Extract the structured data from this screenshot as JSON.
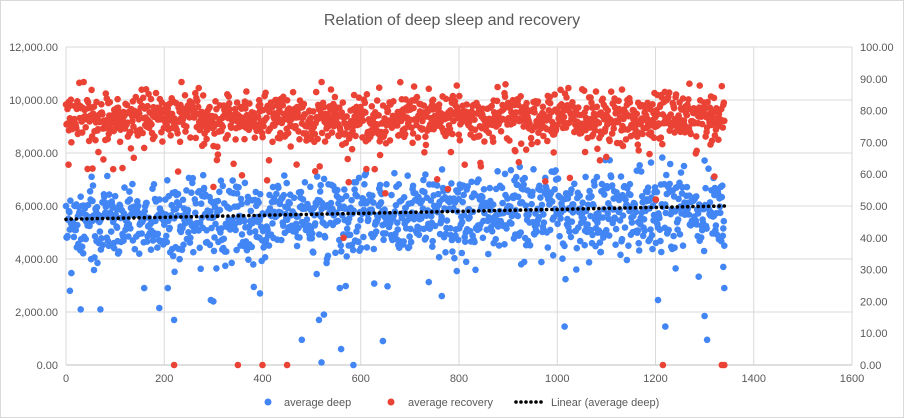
{
  "chart_data": {
    "type": "scatter",
    "title": "Relation of deep sleep and recovery",
    "xlabel": "",
    "ylabel": "",
    "xlim": [
      0,
      1600
    ],
    "ylim": [
      0,
      12000
    ],
    "y2lim": [
      0,
      100
    ],
    "x_ticks": [
      "0",
      "200",
      "400",
      "600",
      "800",
      "1000",
      "1200",
      "1400",
      "1600"
    ],
    "y_ticks": [
      "0.00",
      "2,000.00",
      "4,000.00",
      "6,000.00",
      "8,000.00",
      "10,000.00",
      "12,000.00"
    ],
    "y2_ticks": [
      "0.00",
      "10.00",
      "20.00",
      "30.00",
      "40.00",
      "50.00",
      "60.00",
      "70.00",
      "80.00",
      "90.00",
      "100.00"
    ],
    "grid": true,
    "legend_position": "bottom",
    "series": [
      {
        "name": "average deep",
        "axis": "left",
        "color": "#4285F4",
        "n_points": 1340,
        "x_range": [
          0,
          1340
        ],
        "band_center_start": 5400,
        "band_center_end": 6000,
        "band_spread": 1800,
        "outliers": [
          {
            "x": 8,
            "y": 2800
          },
          {
            "x": 30,
            "y": 2100
          },
          {
            "x": 70,
            "y": 2100
          },
          {
            "x": 190,
            "y": 2150
          },
          {
            "x": 220,
            "y": 1700
          },
          {
            "x": 295,
            "y": 2450
          },
          {
            "x": 300,
            "y": 2400
          },
          {
            "x": 395,
            "y": 2700
          },
          {
            "x": 480,
            "y": 950
          },
          {
            "x": 515,
            "y": 1700
          },
          {
            "x": 525,
            "y": 1900
          },
          {
            "x": 520,
            "y": 100
          },
          {
            "x": 560,
            "y": 600
          },
          {
            "x": 585,
            "y": 0
          },
          {
            "x": 645,
            "y": 900
          },
          {
            "x": 765,
            "y": 2600
          },
          {
            "x": 1015,
            "y": 1450
          },
          {
            "x": 1205,
            "y": 2450
          },
          {
            "x": 1220,
            "y": 1450
          },
          {
            "x": 1300,
            "y": 1850
          },
          {
            "x": 1305,
            "y": 950
          },
          {
            "x": 1340,
            "y": 2900
          },
          {
            "x": 1338,
            "y": 3700
          }
        ]
      },
      {
        "name": "average recovery",
        "axis": "right",
        "color": "#EA4335",
        "n_points": 1340,
        "x_range": [
          0,
          1340
        ],
        "band_center": 78,
        "band_spread": 9,
        "outliers": [
          {
            "x": 220,
            "y": 0
          },
          {
            "x": 350,
            "y": 0
          },
          {
            "x": 400,
            "y": 0
          },
          {
            "x": 450,
            "y": 0
          },
          {
            "x": 1215,
            "y": 0
          },
          {
            "x": 1335,
            "y": 0
          },
          {
            "x": 1340,
            "y": 0
          },
          {
            "x": 565,
            "y": 40
          },
          {
            "x": 5,
            "y": 63
          },
          {
            "x": 300,
            "y": 56
          },
          {
            "x": 650,
            "y": 54
          }
        ]
      },
      {
        "name": "Linear (average deep)",
        "axis": "left",
        "type": "trendline",
        "color": "#000000",
        "x": [
          0,
          1340
        ],
        "y": [
          5500,
          6000
        ]
      }
    ]
  }
}
